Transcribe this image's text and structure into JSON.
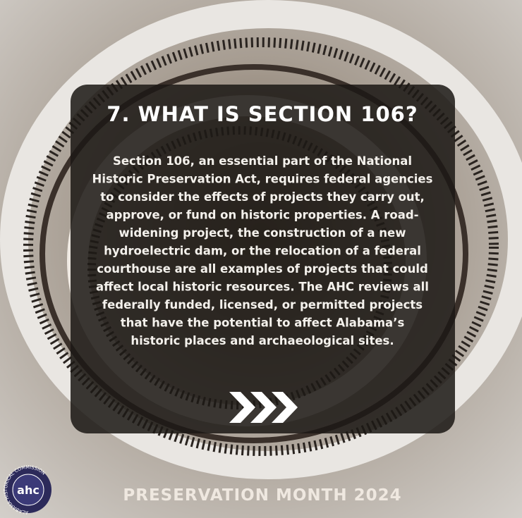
{
  "header": {
    "title": "7. WHAT IS SECTION 106?"
  },
  "body": {
    "lines": [
      "Section 106, an essential part of the National",
      "Historic Preservation Act, requires federal agencies",
      "to consider the effects of projects they carry out,",
      "approve, or fund on historic properties. A road-",
      "widening project, the construction of a new",
      "hydroelectric dam, or the relocation of a federal",
      "courthouse are all examples of projects that could",
      "affect local historic resources. The AHC reviews all",
      "federally funded, licensed, or permitted projects",
      "that have the potential to affect Alabama’s",
      "historic places and archaeological sites."
    ]
  },
  "logo": {
    "text": "ahc",
    "ring": "ALABAMA HISTORICAL COMMISSION"
  },
  "footer": {
    "text": "PRESERVATION MONTH 2024"
  }
}
